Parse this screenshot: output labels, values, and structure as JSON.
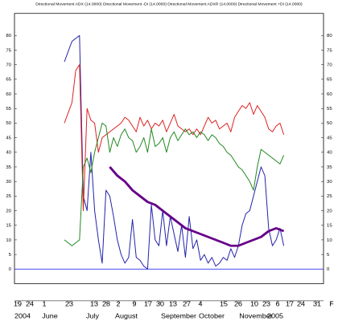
{
  "chart_data": {
    "type": "line",
    "title": "Directional Movement ADX (14.0000) Directional Movement -DI (14.0000) Directional Movement ADXR (14.0000) Directional Movement +DI (14.0000)",
    "ylim": [
      -5,
      85
    ],
    "y_ticks": [
      "0",
      "5",
      "10",
      "15",
      "20",
      "25",
      "30",
      "35",
      "40",
      "45",
      "50",
      "55",
      "60",
      "65",
      "70",
      "75",
      "80"
    ],
    "x_day_labels": [
      "19",
      "24",
      "1",
      "23",
      "13",
      "28",
      "2",
      "9",
      "17",
      "30",
      "13",
      "27",
      "4",
      "15",
      "26",
      "10",
      "23",
      "6",
      "17",
      "24",
      "31",
      "F"
    ],
    "x_month_labels": [
      "2004",
      "June",
      "July",
      "August",
      "September",
      "October",
      "November",
      "2005"
    ],
    "reference_line": {
      "value": 0,
      "color": "#3333ee"
    },
    "series": [
      {
        "color": "#2222aa",
        "points": [
          [
            0,
            71
          ],
          [
            2,
            78
          ],
          [
            3,
            79
          ],
          [
            4,
            80
          ],
          [
            5,
            25
          ],
          [
            6,
            20
          ],
          [
            7,
            40
          ],
          [
            8,
            20
          ],
          [
            9,
            10
          ],
          [
            10,
            2
          ],
          [
            11,
            27
          ],
          [
            12,
            25
          ],
          [
            13,
            18
          ],
          [
            14,
            10
          ],
          [
            15,
            5
          ],
          [
            16,
            2
          ],
          [
            17,
            4
          ],
          [
            18,
            17
          ],
          [
            19,
            4
          ],
          [
            20,
            3
          ],
          [
            21,
            1
          ],
          [
            22,
            0
          ],
          [
            23,
            22
          ],
          [
            24,
            10
          ],
          [
            25,
            8
          ],
          [
            26,
            20
          ],
          [
            27,
            8
          ],
          [
            28,
            18
          ],
          [
            29,
            12
          ],
          [
            30,
            6
          ],
          [
            31,
            15
          ],
          [
            32,
            4
          ],
          [
            33,
            18
          ],
          [
            34,
            7
          ],
          [
            35,
            10
          ],
          [
            36,
            3
          ],
          [
            37,
            5
          ],
          [
            38,
            2
          ],
          [
            39,
            4
          ],
          [
            40,
            1
          ],
          [
            41,
            2
          ],
          [
            42,
            4
          ],
          [
            43,
            3
          ],
          [
            44,
            7
          ],
          [
            45,
            4
          ],
          [
            46,
            8
          ],
          [
            47,
            15
          ],
          [
            48,
            19
          ],
          [
            49,
            20
          ],
          [
            50,
            25
          ],
          [
            51,
            30
          ],
          [
            52,
            35
          ],
          [
            53,
            32
          ],
          [
            54,
            14
          ],
          [
            55,
            8
          ],
          [
            56,
            10
          ],
          [
            57,
            14
          ],
          [
            58,
            8
          ]
        ]
      },
      {
        "color": "#dd2222",
        "points": [
          [
            0,
            50
          ],
          [
            2,
            57
          ],
          [
            3,
            68
          ],
          [
            4,
            70
          ],
          [
            5,
            20
          ],
          [
            6,
            55
          ],
          [
            7,
            51
          ],
          [
            8,
            50
          ],
          [
            9,
            40
          ],
          [
            10,
            45
          ],
          [
            11,
            46
          ],
          [
            12,
            47
          ],
          [
            13,
            48
          ],
          [
            14,
            49
          ],
          [
            15,
            50
          ],
          [
            16,
            52
          ],
          [
            17,
            51
          ],
          [
            18,
            49
          ],
          [
            19,
            47
          ],
          [
            20,
            52
          ],
          [
            21,
            49
          ],
          [
            22,
            51
          ],
          [
            23,
            48
          ],
          [
            24,
            50
          ],
          [
            25,
            49
          ],
          [
            26,
            51
          ],
          [
            27,
            47
          ],
          [
            28,
            50
          ],
          [
            29,
            53
          ],
          [
            30,
            49
          ],
          [
            31,
            48
          ],
          [
            32,
            47
          ],
          [
            33,
            48
          ],
          [
            34,
            46
          ],
          [
            35,
            48
          ],
          [
            36,
            46
          ],
          [
            37,
            49
          ],
          [
            38,
            52
          ],
          [
            39,
            50
          ],
          [
            40,
            51
          ],
          [
            41,
            48
          ],
          [
            42,
            49
          ],
          [
            43,
            50
          ],
          [
            44,
            47
          ],
          [
            45,
            52
          ],
          [
            46,
            54
          ],
          [
            47,
            56
          ],
          [
            48,
            55
          ],
          [
            49,
            57
          ],
          [
            50,
            53
          ],
          [
            51,
            56
          ],
          [
            52,
            54
          ],
          [
            53,
            52
          ],
          [
            54,
            48
          ],
          [
            55,
            47
          ],
          [
            56,
            49
          ],
          [
            57,
            50
          ],
          [
            58,
            46
          ]
        ]
      },
      {
        "color": "#228822",
        "points": [
          [
            0,
            10
          ],
          [
            2,
            8
          ],
          [
            3,
            9
          ],
          [
            4,
            10
          ],
          [
            5,
            35
          ],
          [
            6,
            38
          ],
          [
            7,
            33
          ],
          [
            8,
            40
          ],
          [
            9,
            45
          ],
          [
            10,
            50
          ],
          [
            11,
            49
          ],
          [
            12,
            40
          ],
          [
            13,
            45
          ],
          [
            14,
            42
          ],
          [
            15,
            46
          ],
          [
            16,
            48
          ],
          [
            17,
            45
          ],
          [
            18,
            44
          ],
          [
            19,
            40
          ],
          [
            20,
            42
          ],
          [
            21,
            45
          ],
          [
            22,
            40
          ],
          [
            23,
            48
          ],
          [
            24,
            42
          ],
          [
            25,
            43
          ],
          [
            26,
            45
          ],
          [
            27,
            40
          ],
          [
            28,
            45
          ],
          [
            29,
            47
          ],
          [
            30,
            44
          ],
          [
            31,
            46
          ],
          [
            32,
            48
          ],
          [
            33,
            46
          ],
          [
            34,
            47
          ],
          [
            35,
            45
          ],
          [
            36,
            47
          ],
          [
            37,
            46
          ],
          [
            38,
            44
          ],
          [
            39,
            46
          ],
          [
            40,
            45
          ],
          [
            41,
            43
          ],
          [
            42,
            42
          ],
          [
            43,
            40
          ],
          [
            44,
            39
          ],
          [
            45,
            37
          ],
          [
            46,
            35
          ],
          [
            47,
            34
          ],
          [
            48,
            32
          ],
          [
            49,
            30
          ],
          [
            50,
            27
          ],
          [
            51,
            35
          ],
          [
            52,
            41
          ],
          [
            53,
            40
          ],
          [
            54,
            39
          ],
          [
            55,
            38
          ],
          [
            56,
            37
          ],
          [
            57,
            36
          ],
          [
            58,
            39
          ]
        ]
      },
      {
        "color": "#660088",
        "points": [
          [
            12,
            35
          ],
          [
            14,
            32
          ],
          [
            16,
            30
          ],
          [
            18,
            27
          ],
          [
            20,
            25
          ],
          [
            22,
            23
          ],
          [
            24,
            22
          ],
          [
            26,
            20
          ],
          [
            28,
            18
          ],
          [
            30,
            16
          ],
          [
            32,
            14
          ],
          [
            34,
            13
          ],
          [
            36,
            12
          ],
          [
            38,
            11
          ],
          [
            40,
            10
          ],
          [
            42,
            9
          ],
          [
            44,
            8
          ],
          [
            46,
            8
          ],
          [
            48,
            9
          ],
          [
            50,
            10
          ],
          [
            52,
            11
          ],
          [
            54,
            13
          ],
          [
            56,
            14
          ],
          [
            58,
            13
          ]
        ]
      }
    ]
  }
}
